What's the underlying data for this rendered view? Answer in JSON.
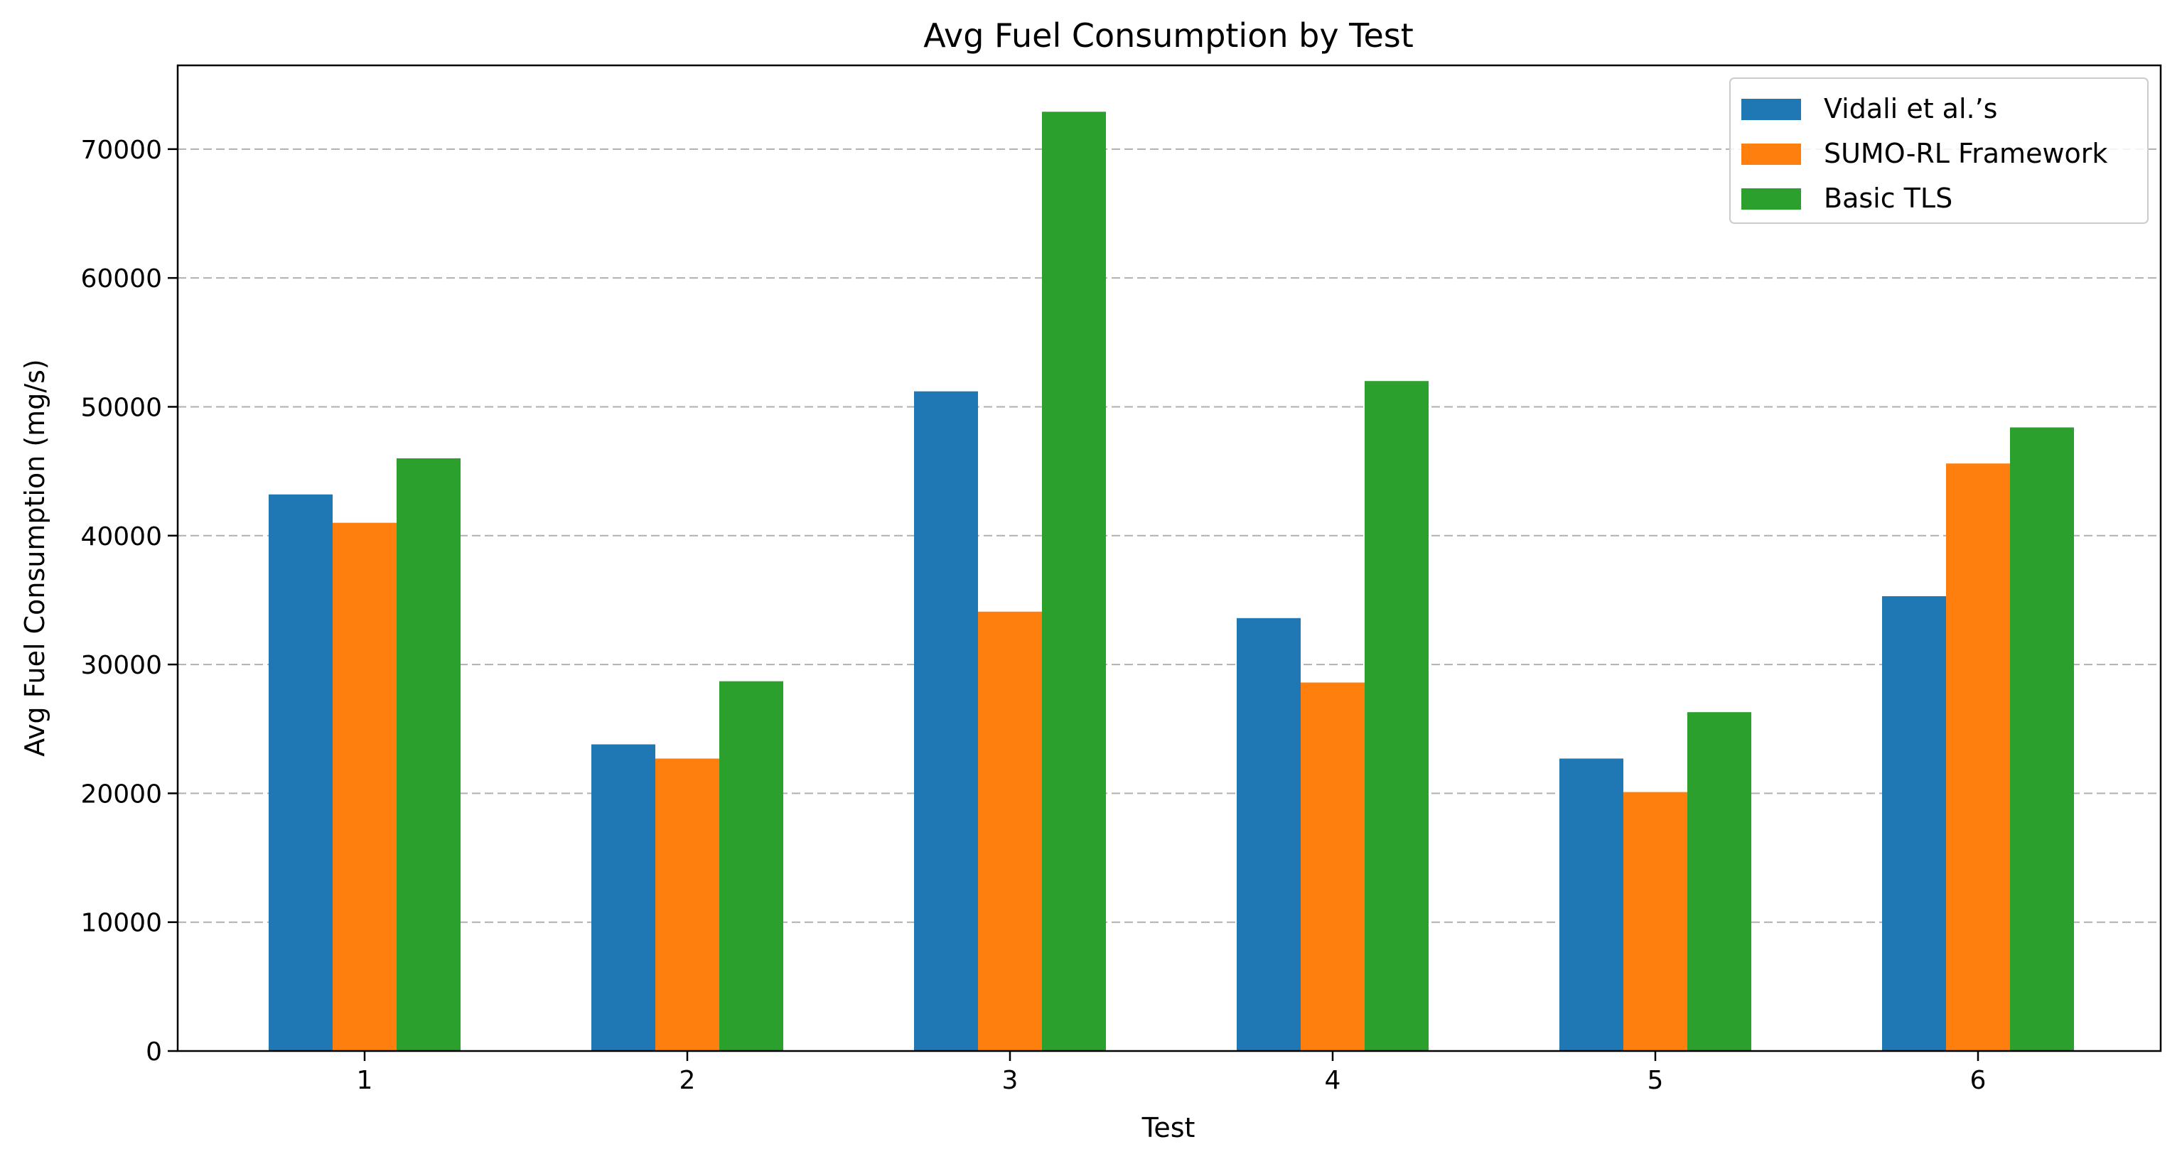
{
  "chart_data": {
    "type": "bar",
    "title": "Avg Fuel Consumption by Test",
    "xlabel": "Test",
    "ylabel": "Avg Fuel Consumption (mg/s)",
    "categories": [
      "1",
      "2",
      "3",
      "4",
      "5",
      "6"
    ],
    "series": [
      {
        "name": "Vidali et al.’s",
        "color": "#1f77b4",
        "values": [
          43200,
          23800,
          51200,
          33600,
          22700,
          35300
        ]
      },
      {
        "name": "SUMO-RL Framework",
        "color": "#ff7f0e",
        "values": [
          41000,
          22700,
          34100,
          28600,
          20100,
          45600
        ]
      },
      {
        "name": "Basic TLS",
        "color": "#2ca02c",
        "values": [
          46000,
          28700,
          72900,
          52000,
          26300,
          48400
        ]
      }
    ],
    "ylim": [
      0,
      76500
    ],
    "yticks": [
      0,
      10000,
      20000,
      30000,
      40000,
      50000,
      60000,
      70000
    ],
    "grid": "y-dashed",
    "legend_position": "top-right"
  }
}
